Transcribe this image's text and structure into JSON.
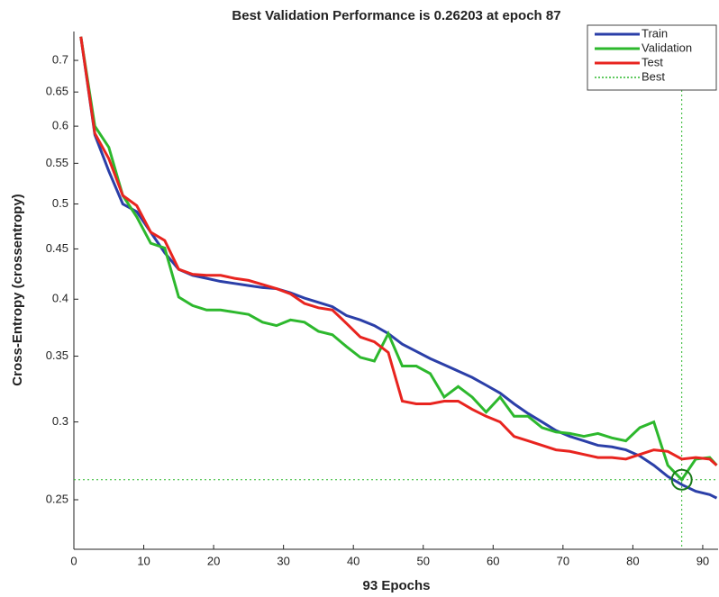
{
  "chart_data": {
    "type": "line",
    "title": "Best Validation Performance is 0.26203 at epoch 87",
    "xlabel": "93 Epochs",
    "ylabel": "Cross-Entropy  (crossentropy)",
    "x": [
      1,
      3,
      5,
      7,
      9,
      11,
      13,
      15,
      17,
      19,
      21,
      23,
      25,
      27,
      29,
      31,
      33,
      35,
      37,
      39,
      41,
      43,
      45,
      47,
      49,
      51,
      53,
      55,
      57,
      59,
      61,
      63,
      65,
      67,
      69,
      71,
      73,
      75,
      77,
      79,
      81,
      83,
      85,
      87,
      89,
      91,
      92
    ],
    "series": [
      {
        "name": "Train",
        "color": "#2b3fa8",
        "values": [
          0.74,
          0.588,
          0.54,
          0.5,
          0.491,
          0.468,
          0.446,
          0.429,
          0.423,
          0.42,
          0.417,
          0.415,
          0.413,
          0.411,
          0.41,
          0.406,
          0.401,
          0.397,
          0.393,
          0.385,
          0.381,
          0.376,
          0.369,
          0.36,
          0.354,
          0.348,
          0.343,
          0.338,
          0.333,
          0.327,
          0.321,
          0.313,
          0.306,
          0.3,
          0.294,
          0.29,
          0.287,
          0.284,
          0.283,
          0.281,
          0.277,
          0.271,
          0.264,
          0.259,
          0.255,
          0.253,
          0.251
        ]
      },
      {
        "name": "Validation",
        "color": "#2db82d",
        "values": [
          0.74,
          0.6,
          0.571,
          0.51,
          0.485,
          0.456,
          0.451,
          0.402,
          0.394,
          0.39,
          0.39,
          0.388,
          0.386,
          0.379,
          0.376,
          0.381,
          0.379,
          0.371,
          0.368,
          0.358,
          0.349,
          0.346,
          0.369,
          0.342,
          0.342,
          0.336,
          0.318,
          0.326,
          0.318,
          0.307,
          0.318,
          0.304,
          0.304,
          0.296,
          0.293,
          0.292,
          0.29,
          0.292,
          0.289,
          0.287,
          0.296,
          0.3,
          0.271,
          0.26203,
          0.275,
          0.276,
          0.271
        ]
      },
      {
        "name": "Test",
        "color": "#e8241f",
        "values": [
          0.74,
          0.59,
          0.556,
          0.51,
          0.498,
          0.468,
          0.459,
          0.429,
          0.424,
          0.423,
          0.423,
          0.42,
          0.418,
          0.414,
          0.41,
          0.405,
          0.396,
          0.392,
          0.39,
          0.378,
          0.366,
          0.362,
          0.353,
          0.315,
          0.313,
          0.313,
          0.315,
          0.315,
          0.309,
          0.304,
          0.3,
          0.29,
          0.287,
          0.284,
          0.281,
          0.28,
          0.278,
          0.276,
          0.276,
          0.275,
          0.278,
          0.281,
          0.28,
          0.275,
          0.276,
          0.275,
          0.271
        ]
      }
    ],
    "best": {
      "name": "Best",
      "color": "#2db82d",
      "x": 87,
      "y": 0.26203
    },
    "xlim": [
      0,
      92.2
    ],
    "ylim": [
      0.2226,
      0.749
    ],
    "ylog": true,
    "xticks": [
      0,
      10,
      20,
      30,
      40,
      50,
      60,
      70,
      80,
      90
    ],
    "yticks": [
      0.25,
      0.3,
      0.35,
      0.4,
      0.45,
      0.5,
      0.55,
      0.6,
      0.65,
      0.7
    ],
    "legend": "upper right"
  }
}
